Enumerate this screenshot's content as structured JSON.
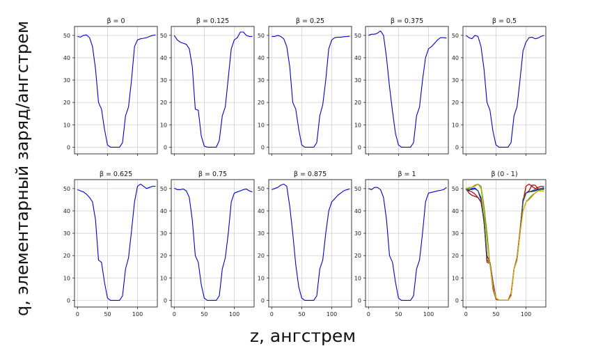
{
  "figure": {
    "ylabel": "q, элементарный заряд/ангстрем",
    "xlabel": "z, ангстрем"
  },
  "chart_data": [
    {
      "type": "line",
      "title": "β = 0",
      "xlim": [
        -5,
        133
      ],
      "ylim": [
        -3,
        54
      ],
      "xticks": [
        0,
        50,
        100
      ],
      "yticks": [
        0,
        10,
        20,
        30,
        40,
        50
      ],
      "grid": true,
      "colors": [
        "#0000cc"
      ],
      "series": [
        {
          "x": [
            0,
            5,
            10,
            15,
            20,
            25,
            30,
            35,
            40,
            45,
            50,
            55,
            60,
            65,
            70,
            75,
            80,
            85,
            90,
            95,
            100,
            105,
            110,
            115,
            120,
            125,
            130
          ],
          "y": [
            49.5,
            49.2,
            50,
            50.2,
            49,
            45,
            35,
            20,
            17,
            8,
            1,
            0,
            0,
            0,
            0,
            2,
            14,
            18,
            30,
            45,
            48,
            48.5,
            48.7,
            49,
            49.5,
            50,
            50.2
          ]
        }
      ]
    },
    {
      "type": "line",
      "title": "β = 0.125",
      "xlim": [
        -5,
        133
      ],
      "ylim": [
        -3,
        54
      ],
      "xticks": [
        0,
        50,
        100
      ],
      "yticks": [
        0,
        10,
        20,
        30,
        40,
        50
      ],
      "grid": true,
      "colors": [
        "#0000cc"
      ],
      "series": [
        {
          "x": [
            0,
            5,
            10,
            15,
            20,
            25,
            30,
            35,
            40,
            45,
            50,
            55,
            60,
            65,
            70,
            75,
            80,
            85,
            90,
            95,
            100,
            105,
            110,
            115,
            120,
            125,
            130
          ],
          "y": [
            50,
            48,
            47,
            46.5,
            46,
            44,
            36,
            17,
            16.5,
            5,
            0.5,
            0,
            0,
            0,
            0,
            3,
            14,
            18,
            31,
            44,
            48,
            49,
            51.5,
            51.5,
            50,
            49.5,
            49.5
          ]
        }
      ]
    },
    {
      "type": "line",
      "title": "β = 0.25",
      "xlim": [
        -5,
        133
      ],
      "ylim": [
        -3,
        54
      ],
      "xticks": [
        0,
        50,
        100
      ],
      "yticks": [
        0,
        10,
        20,
        30,
        40,
        50
      ],
      "grid": true,
      "colors": [
        "#0000cc"
      ],
      "series": [
        {
          "x": [
            0,
            5,
            10,
            15,
            20,
            25,
            30,
            35,
            40,
            45,
            50,
            55,
            60,
            65,
            70,
            75,
            80,
            85,
            90,
            95,
            100,
            105,
            110,
            115,
            120,
            125,
            130
          ],
          "y": [
            49.5,
            49.5,
            50,
            49.5,
            48.5,
            45,
            36,
            20,
            17,
            8,
            1,
            0,
            0,
            0,
            0,
            2,
            14,
            19,
            30,
            44,
            48,
            49,
            49.2,
            49.2,
            49.4,
            49.5,
            49.6
          ]
        }
      ]
    },
    {
      "type": "line",
      "title": "β = 0.375",
      "xlim": [
        -5,
        133
      ],
      "ylim": [
        -3,
        54
      ],
      "xticks": [
        0,
        50,
        100
      ],
      "yticks": [
        0,
        10,
        20,
        30,
        40,
        50
      ],
      "grid": true,
      "colors": [
        "#0000cc"
      ],
      "series": [
        {
          "x": [
            0,
            5,
            10,
            15,
            20,
            25,
            30,
            35,
            40,
            45,
            50,
            55,
            60,
            65,
            70,
            75,
            80,
            85,
            90,
            95,
            100,
            105,
            110,
            115,
            120,
            125,
            130
          ],
          "y": [
            50,
            50.5,
            50.5,
            51,
            52,
            50,
            40,
            27,
            16,
            6,
            1,
            0,
            0,
            0,
            0,
            2,
            14,
            18,
            30,
            40,
            44,
            45,
            46.5,
            48,
            49,
            49,
            48.8
          ]
        }
      ]
    },
    {
      "type": "line",
      "title": "β = 0.5",
      "xlim": [
        -5,
        133
      ],
      "ylim": [
        -3,
        54
      ],
      "xticks": [
        0,
        50,
        100
      ],
      "yticks": [
        0,
        10,
        20,
        30,
        40,
        50
      ],
      "grid": true,
      "colors": [
        "#0000cc"
      ],
      "series": [
        {
          "x": [
            0,
            5,
            10,
            15,
            20,
            25,
            30,
            35,
            40,
            45,
            50,
            55,
            60,
            65,
            70,
            75,
            80,
            85,
            90,
            95,
            100,
            105,
            110,
            115,
            120,
            125,
            130
          ],
          "y": [
            50,
            49,
            48.5,
            50,
            49.5,
            45,
            35,
            20,
            16.5,
            7,
            1,
            0,
            0,
            0,
            0,
            2,
            14,
            18,
            30,
            43,
            47,
            49,
            49.2,
            48.5,
            48.8,
            49.5,
            50
          ]
        }
      ]
    },
    {
      "type": "line",
      "title": "β = 0.625",
      "xlim": [
        -5,
        133
      ],
      "ylim": [
        -3,
        54
      ],
      "xticks": [
        0,
        50,
        100
      ],
      "yticks": [
        0,
        10,
        20,
        30,
        40,
        50
      ],
      "grid": true,
      "colors": [
        "#0000cc"
      ],
      "series": [
        {
          "x": [
            0,
            5,
            10,
            15,
            20,
            25,
            30,
            35,
            40,
            45,
            50,
            55,
            60,
            65,
            70,
            75,
            80,
            85,
            90,
            95,
            100,
            105,
            110,
            115,
            120,
            125,
            130
          ],
          "y": [
            49.5,
            49,
            48.5,
            47.5,
            46,
            44,
            36,
            18,
            17,
            8,
            1,
            0,
            0,
            0,
            0,
            2,
            14,
            19,
            31,
            44,
            51,
            52,
            51,
            50,
            50.5,
            51,
            51
          ]
        }
      ]
    },
    {
      "type": "line",
      "title": "β = 0.75",
      "xlim": [
        -5,
        133
      ],
      "ylim": [
        -3,
        54
      ],
      "xticks": [
        0,
        50,
        100
      ],
      "yticks": [
        0,
        10,
        20,
        30,
        40,
        50
      ],
      "grid": true,
      "colors": [
        "#0000cc"
      ],
      "series": [
        {
          "x": [
            0,
            5,
            10,
            15,
            20,
            25,
            30,
            35,
            40,
            45,
            50,
            55,
            60,
            65,
            70,
            75,
            80,
            85,
            90,
            95,
            100,
            105,
            110,
            115,
            120,
            125,
            130
          ],
          "y": [
            50.2,
            49.5,
            49.5,
            49.8,
            49,
            46,
            36,
            20,
            17,
            7,
            1,
            0,
            0,
            0,
            0,
            2,
            14,
            19,
            30,
            44,
            48,
            48.5,
            49,
            49.5,
            49.8,
            49,
            48.5
          ]
        }
      ]
    },
    {
      "type": "line",
      "title": "β = 0.875",
      "xlim": [
        -5,
        133
      ],
      "ylim": [
        -3,
        54
      ],
      "xticks": [
        0,
        50,
        100
      ],
      "yticks": [
        0,
        10,
        20,
        30,
        40,
        50
      ],
      "grid": true,
      "colors": [
        "#0000cc"
      ],
      "series": [
        {
          "x": [
            0,
            5,
            10,
            15,
            20,
            25,
            30,
            35,
            40,
            45,
            50,
            55,
            60,
            65,
            70,
            75,
            80,
            85,
            90,
            95,
            100,
            105,
            110,
            115,
            120,
            125,
            130
          ],
          "y": [
            49.5,
            50,
            50.5,
            51.5,
            52,
            51,
            42,
            30,
            16,
            6,
            1,
            0,
            0,
            0,
            0,
            2,
            14,
            18,
            30,
            40,
            44,
            45.5,
            47,
            48,
            49,
            49.5,
            49.8
          ]
        }
      ]
    },
    {
      "type": "line",
      "title": "β = 1",
      "xlim": [
        -5,
        133
      ],
      "ylim": [
        -3,
        54
      ],
      "xticks": [
        0,
        50,
        100
      ],
      "yticks": [
        0,
        10,
        20,
        30,
        40,
        50
      ],
      "grid": true,
      "colors": [
        "#0000cc"
      ],
      "series": [
        {
          "x": [
            0,
            5,
            10,
            15,
            20,
            25,
            30,
            35,
            40,
            45,
            50,
            55,
            60,
            65,
            70,
            75,
            80,
            85,
            90,
            95,
            100,
            105,
            110,
            115,
            120,
            125,
            130
          ],
          "y": [
            50,
            49.5,
            50.5,
            50.5,
            49.5,
            46,
            36,
            20,
            17,
            8,
            1,
            0,
            0,
            0,
            0,
            2,
            14,
            18,
            30,
            44,
            48,
            48.3,
            48.6,
            49,
            49.2,
            49.5,
            50.5
          ]
        }
      ]
    },
    {
      "type": "line",
      "title": "β (0 - 1)",
      "xlim": [
        -5,
        133
      ],
      "ylim": [
        -3,
        54
      ],
      "xticks": [
        0,
        50,
        100
      ],
      "yticks": [
        0,
        10,
        20,
        30,
        40,
        50
      ],
      "grid": true,
      "colors": [
        "#0000cc",
        "#cc0000",
        "#7a1a1a",
        "#2a5a5a",
        "#22aa22",
        "#e8a000"
      ],
      "series": [
        {
          "x": [
            0,
            5,
            10,
            15,
            20,
            25,
            30,
            35,
            40,
            45,
            50,
            55,
            60,
            65,
            70,
            75,
            80,
            85,
            90,
            95,
            100,
            105,
            110,
            115,
            120,
            125,
            130
          ],
          "y": [
            49.5,
            49.2,
            50,
            50.2,
            49,
            45,
            35,
            20,
            17,
            8,
            1,
            0,
            0,
            0,
            0,
            2,
            14,
            18,
            30,
            45,
            48,
            48.5,
            48.7,
            49,
            49.5,
            50,
            50.2
          ]
        },
        {
          "x": [
            0,
            5,
            10,
            15,
            20,
            25,
            30,
            35,
            40,
            45,
            50,
            55,
            60,
            65,
            70,
            75,
            80,
            85,
            90,
            95,
            100,
            105,
            110,
            115,
            120,
            125,
            130
          ],
          "y": [
            49.5,
            49,
            48.5,
            47.5,
            46,
            44,
            36,
            18,
            17,
            8,
            1,
            0,
            0,
            0,
            0,
            2,
            14,
            19,
            31,
            44,
            51,
            52,
            51,
            50,
            50.5,
            51,
            51
          ]
        },
        {
          "x": [
            0,
            5,
            10,
            15,
            20,
            25,
            30,
            35,
            40,
            45,
            50,
            55,
            60,
            65,
            70,
            75,
            80,
            85,
            90,
            95,
            100,
            105,
            110,
            115,
            120,
            125,
            130
          ],
          "y": [
            50,
            48,
            47,
            46.5,
            46,
            44,
            36,
            17,
            16.5,
            5,
            0.5,
            0,
            0,
            0,
            0,
            3,
            14,
            18,
            31,
            44,
            48,
            49,
            51.5,
            51.5,
            50,
            49.5,
            49.5
          ]
        },
        {
          "x": [
            0,
            5,
            10,
            15,
            20,
            25,
            30,
            35,
            40,
            45,
            50,
            55,
            60,
            65,
            70,
            75,
            80,
            85,
            90,
            95,
            100,
            105,
            110,
            115,
            120,
            125,
            130
          ],
          "y": [
            50.2,
            49.5,
            49.5,
            49.8,
            49,
            46,
            36,
            20,
            17,
            7,
            1,
            0,
            0,
            0,
            0,
            2,
            14,
            19,
            30,
            44,
            48,
            48.5,
            49,
            49.5,
            49.8,
            50,
            50.5
          ]
        },
        {
          "x": [
            0,
            5,
            10,
            15,
            20,
            25,
            30,
            35,
            40,
            45,
            50,
            55,
            60,
            65,
            70,
            75,
            80,
            85,
            90,
            95,
            100,
            105,
            110,
            115,
            120,
            125,
            130
          ],
          "y": [
            49.5,
            50,
            50.5,
            51.5,
            52,
            51,
            42,
            30,
            16,
            6,
            1,
            0,
            0,
            0,
            0,
            2,
            14,
            18,
            30,
            40,
            44,
            45.5,
            47,
            48,
            49,
            49.5,
            49.8
          ]
        },
        {
          "x": [
            0,
            5,
            10,
            15,
            20,
            25,
            30,
            35,
            40,
            45,
            50,
            55,
            60,
            65,
            70,
            75,
            80,
            85,
            90,
            95,
            100,
            105,
            110,
            115,
            120,
            125,
            130
          ],
          "y": [
            50,
            50.5,
            50.5,
            51,
            52,
            50,
            40,
            27,
            16,
            6,
            1,
            0,
            0,
            0,
            0,
            2,
            14,
            18,
            30,
            40,
            44,
            45,
            46.5,
            48,
            49,
            49,
            48.8
          ]
        }
      ]
    }
  ]
}
